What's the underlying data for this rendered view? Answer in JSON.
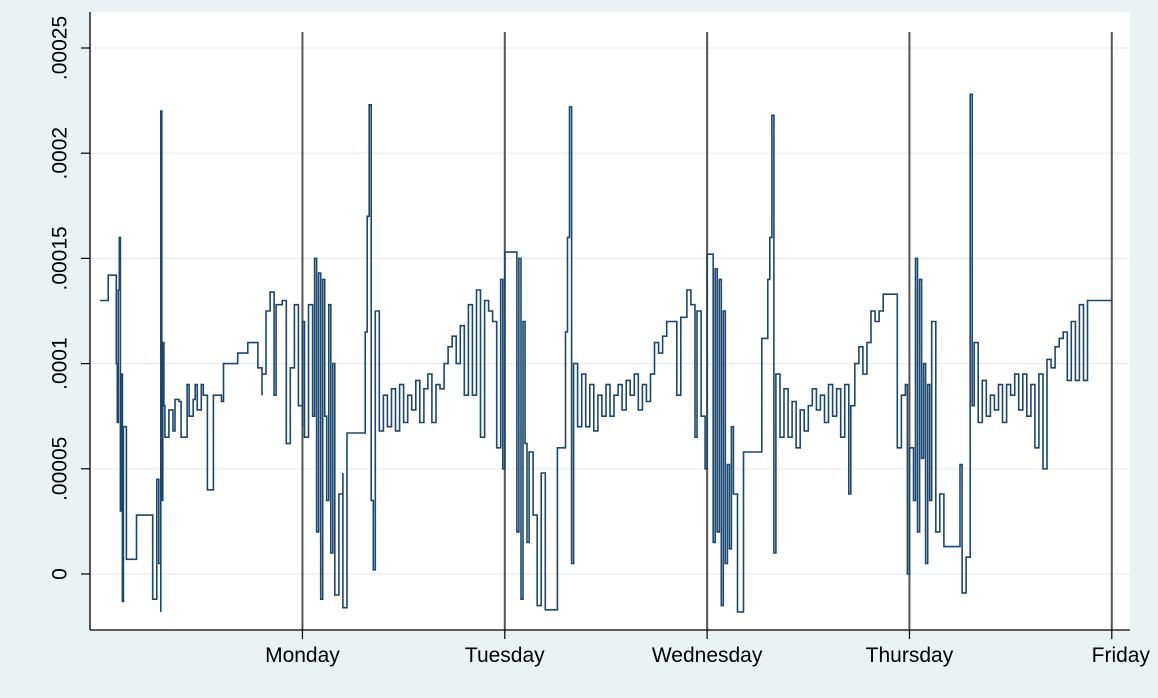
{
  "chart_data": {
    "type": "line",
    "title": "",
    "xlabel": "",
    "ylabel": "",
    "ylim": [
      -2.5e-05,
      0.00025
    ],
    "y_ticks": [
      {
        "value": 0,
        "label": "0"
      },
      {
        "value": 5e-05,
        "label": ".00005"
      },
      {
        "value": 0.0001,
        "label": ".0001"
      },
      {
        "value": 0.00015,
        "label": ".00015"
      },
      {
        "value": 0.0002,
        "label": ".0002"
      },
      {
        "value": 0.00025,
        "label": ".00025"
      }
    ],
    "x_ticks": [
      {
        "value": 1,
        "label": "Monday"
      },
      {
        "value": 2,
        "label": "Tuesday"
      },
      {
        "value": 3,
        "label": "Wednesday"
      },
      {
        "value": 4,
        "label": "Thursday"
      },
      {
        "value": 5,
        "label": "Friday"
      }
    ],
    "xlim": [
      -0.05,
      5.09
    ],
    "day_dividers": [
      1,
      2,
      3,
      4,
      5
    ],
    "grid": "horizontal",
    "colors": {
      "series": "#1a476f",
      "divider": "#555555",
      "grid": "#e8eef0",
      "plot_background": "#ffffff",
      "page_background": "#eaf2f3"
    },
    "series": [
      {
        "values": [
          [
            0.0,
            0.00013
          ],
          [
            0.03,
            0.00013
          ],
          [
            0.04,
            0.000142
          ],
          [
            0.08,
            0.000142
          ],
          [
            0.08,
            0.0001
          ],
          [
            0.085,
            7.2e-05
          ],
          [
            0.09,
            0.000135
          ],
          [
            0.095,
            0.00016
          ],
          [
            0.1,
            3e-05
          ],
          [
            0.105,
            9.5e-05
          ],
          [
            0.11,
            -1.3e-05
          ],
          [
            0.115,
            7e-05
          ],
          [
            0.13,
            7e-05
          ],
          [
            0.13,
            7e-06
          ],
          [
            0.18,
            7e-06
          ],
          [
            0.18,
            2.8e-05
          ],
          [
            0.26,
            2.8e-05
          ],
          [
            0.26,
            -1.2e-05
          ],
          [
            0.28,
            -1.2e-05
          ],
          [
            0.28,
            4.5e-05
          ],
          [
            0.29,
            5e-06
          ],
          [
            0.3,
            -1.8e-05
          ],
          [
            0.3,
            0.00022
          ],
          [
            0.305,
            3.5e-05
          ],
          [
            0.31,
            0.00011
          ],
          [
            0.315,
            8e-05
          ],
          [
            0.32,
            6.5e-05
          ],
          [
            0.34,
            6.5e-05
          ],
          [
            0.34,
            7.8e-05
          ],
          [
            0.36,
            6.8e-05
          ],
          [
            0.37,
            8.3e-05
          ],
          [
            0.39,
            8.2e-05
          ],
          [
            0.4,
            6.5e-05
          ],
          [
            0.42,
            6.5e-05
          ],
          [
            0.43,
            9e-05
          ],
          [
            0.44,
            7.5e-05
          ],
          [
            0.46,
            8.3e-05
          ],
          [
            0.47,
            9e-05
          ],
          [
            0.48,
            7.8e-05
          ],
          [
            0.5,
            9e-05
          ],
          [
            0.51,
            8.5e-05
          ],
          [
            0.53,
            8.5e-05
          ],
          [
            0.53,
            4e-05
          ],
          [
            0.56,
            4e-05
          ],
          [
            0.56,
            8.5e-05
          ],
          [
            0.6,
            8.2e-05
          ],
          [
            0.61,
            0.0001
          ],
          [
            0.67,
            0.0001
          ],
          [
            0.68,
            0.000105
          ],
          [
            0.72,
            0.000105
          ],
          [
            0.73,
            0.00011
          ],
          [
            0.77,
            0.00011
          ],
          [
            0.78,
            9.8e-05
          ],
          [
            0.8,
            8.5e-05
          ],
          [
            0.8,
            9.5e-05
          ],
          [
            0.82,
            0.000125
          ],
          [
            0.84,
            0.000134
          ],
          [
            0.86,
            8.5e-05
          ],
          [
            0.87,
            0.000128
          ],
          [
            0.9,
            0.00013
          ],
          [
            0.92,
            6.2e-05
          ],
          [
            0.94,
            9.8e-05
          ],
          [
            0.96,
            0.000128
          ],
          [
            0.98,
            8e-05
          ],
          [
            1.0,
            7e-05
          ],
          [
            1.0,
            0.00012
          ],
          [
            1.01,
            6.5e-05
          ],
          [
            1.03,
            0.000128
          ],
          [
            1.05,
            7.5e-05
          ],
          [
            1.06,
            0.00015
          ],
          [
            1.07,
            2e-05
          ],
          [
            1.08,
            0.000143
          ],
          [
            1.09,
            -1.2e-05
          ],
          [
            1.1,
            0.00014
          ],
          [
            1.11,
            7.5e-05
          ],
          [
            1.12,
            3.5e-05
          ],
          [
            1.13,
            0.000128
          ],
          [
            1.14,
            1e-05
          ],
          [
            1.15,
            0.0001
          ],
          [
            1.16,
            -1e-05
          ],
          [
            1.18,
            3.8e-05
          ],
          [
            1.2,
            4.8e-05
          ],
          [
            1.2,
            -1.6e-05
          ],
          [
            1.22,
            6.7e-05
          ],
          [
            1.3,
            6.7e-05
          ],
          [
            1.31,
            0.000115
          ],
          [
            1.32,
            0.00017
          ],
          [
            1.33,
            0.000223
          ],
          [
            1.34,
            3.5e-05
          ],
          [
            1.35,
            2e-06
          ],
          [
            1.36,
            0.000125
          ],
          [
            1.38,
            6.8e-05
          ],
          [
            1.4,
            8.5e-05
          ],
          [
            1.42,
            7e-05
          ],
          [
            1.44,
            8.8e-05
          ],
          [
            1.46,
            6.8e-05
          ],
          [
            1.48,
            9e-05
          ],
          [
            1.5,
            7.2e-05
          ],
          [
            1.52,
            8.5e-05
          ],
          [
            1.54,
            7.8e-05
          ],
          [
            1.56,
            9.2e-05
          ],
          [
            1.58,
            7.2e-05
          ],
          [
            1.6,
            8.8e-05
          ],
          [
            1.62,
            9.5e-05
          ],
          [
            1.64,
            7.2e-05
          ],
          [
            1.66,
            9e-05
          ],
          [
            1.68,
            8.8e-05
          ],
          [
            1.7,
            0.0001
          ],
          [
            1.72,
            0.000108
          ],
          [
            1.74,
            0.000113
          ],
          [
            1.76,
            0.0001
          ],
          [
            1.78,
            0.000118
          ],
          [
            1.8,
            8.5e-05
          ],
          [
            1.82,
            0.000128
          ],
          [
            1.84,
            8.5e-05
          ],
          [
            1.86,
            0.000135
          ],
          [
            1.88,
            6.5e-05
          ],
          [
            1.9,
            0.00013
          ],
          [
            1.92,
            0.000125
          ],
          [
            1.94,
            0.00012
          ],
          [
            1.96,
            6e-05
          ],
          [
            1.98,
            0.00014
          ],
          [
            1.99,
            5e-05
          ],
          [
            2.0,
            0.000153
          ],
          [
            2.05,
            0.000153
          ],
          [
            2.06,
            2e-05
          ],
          [
            2.07,
            0.00015
          ],
          [
            2.08,
            -1.2e-05
          ],
          [
            2.09,
            0.00012
          ],
          [
            2.1,
            6.2e-05
          ],
          [
            2.11,
            1.5e-05
          ],
          [
            2.12,
            5.8e-05
          ],
          [
            2.14,
            2.8e-05
          ],
          [
            2.16,
            -1.5e-05
          ],
          [
            2.18,
            4.8e-05
          ],
          [
            2.2,
            -1.7e-05
          ],
          [
            2.25,
            -1.7e-05
          ],
          [
            2.26,
            6e-05
          ],
          [
            2.29,
            6e-05
          ],
          [
            2.3,
            0.000115
          ],
          [
            2.31,
            0.00016
          ],
          [
            2.32,
            0.000222
          ],
          [
            2.33,
            5e-06
          ],
          [
            2.34,
            0.0001
          ],
          [
            2.36,
            7e-05
          ],
          [
            2.38,
            9.5e-05
          ],
          [
            2.4,
            7e-05
          ],
          [
            2.42,
            9e-05
          ],
          [
            2.44,
            6.8e-05
          ],
          [
            2.46,
            8.5e-05
          ],
          [
            2.48,
            7.5e-05
          ],
          [
            2.5,
            9e-05
          ],
          [
            2.52,
            7.5e-05
          ],
          [
            2.54,
            8.5e-05
          ],
          [
            2.56,
            9e-05
          ],
          [
            2.58,
            7.8e-05
          ],
          [
            2.6,
            9.2e-05
          ],
          [
            2.62,
            8.5e-05
          ],
          [
            2.64,
            9.5e-05
          ],
          [
            2.66,
            7.8e-05
          ],
          [
            2.68,
            9e-05
          ],
          [
            2.7,
            8.2e-05
          ],
          [
            2.72,
            9.5e-05
          ],
          [
            2.74,
            0.00011
          ],
          [
            2.76,
            0.000105
          ],
          [
            2.78,
            0.000113
          ],
          [
            2.8,
            0.00012
          ],
          [
            2.84,
            0.00012
          ],
          [
            2.85,
            8.5e-05
          ],
          [
            2.87,
            0.000122
          ],
          [
            2.9,
            0.000135
          ],
          [
            2.92,
            0.000128
          ],
          [
            2.94,
            6.5e-05
          ],
          [
            2.95,
            0.000125
          ],
          [
            2.97,
            7.5e-05
          ],
          [
            2.99,
            5e-05
          ],
          [
            3.0,
            0.000152
          ],
          [
            3.02,
            0.000152
          ],
          [
            3.03,
            1.5e-05
          ],
          [
            3.04,
            0.000145
          ],
          [
            3.05,
            2e-05
          ],
          [
            3.06,
            0.00014
          ],
          [
            3.07,
            -1.5e-05
          ],
          [
            3.08,
            0.000125
          ],
          [
            3.09,
            5e-06
          ],
          [
            3.1,
            5.2e-05
          ],
          [
            3.11,
            1.2e-05
          ],
          [
            3.12,
            7e-05
          ],
          [
            3.13,
            3.8e-05
          ],
          [
            3.15,
            -1.8e-05
          ],
          [
            3.17,
            -1.8e-05
          ],
          [
            3.18,
            5.8e-05
          ],
          [
            3.26,
            5.8e-05
          ],
          [
            3.27,
            0.000112
          ],
          [
            3.29,
            0.000112
          ],
          [
            3.3,
            0.00014
          ],
          [
            3.31,
            0.00016
          ],
          [
            3.32,
            0.000218
          ],
          [
            3.33,
            1e-05
          ],
          [
            3.34,
            9.5e-05
          ],
          [
            3.36,
            6.5e-05
          ],
          [
            3.38,
            8.8e-05
          ],
          [
            3.4,
            6.5e-05
          ],
          [
            3.42,
            8.2e-05
          ],
          [
            3.44,
            6e-05
          ],
          [
            3.46,
            7.8e-05
          ],
          [
            3.48,
            6.8e-05
          ],
          [
            3.5,
            8e-05
          ],
          [
            3.52,
            8.8e-05
          ],
          [
            3.54,
            7.8e-05
          ],
          [
            3.56,
            8.5e-05
          ],
          [
            3.58,
            7.2e-05
          ],
          [
            3.6,
            9e-05
          ],
          [
            3.62,
            7.5e-05
          ],
          [
            3.64,
            8.8e-05
          ],
          [
            3.66,
            6.5e-05
          ],
          [
            3.68,
            9e-05
          ],
          [
            3.7,
            3.8e-05
          ],
          [
            3.71,
            8e-05
          ],
          [
            3.73,
            0.0001
          ],
          [
            3.75,
            0.000108
          ],
          [
            3.77,
            9.5e-05
          ],
          [
            3.79,
            0.00011
          ],
          [
            3.81,
            0.000125
          ],
          [
            3.83,
            0.00012
          ],
          [
            3.85,
            0.000125
          ],
          [
            3.87,
            0.000133
          ],
          [
            3.93,
            0.000133
          ],
          [
            3.94,
            6e-05
          ],
          [
            3.96,
            8.5e-05
          ],
          [
            3.98,
            9e-05
          ],
          [
            3.99,
            0.0
          ],
          [
            4.0,
            6e-05
          ],
          [
            4.02,
            3.5e-05
          ],
          [
            4.03,
            0.00015
          ],
          [
            4.04,
            2e-05
          ],
          [
            4.05,
            0.00014
          ],
          [
            4.06,
            5.5e-05
          ],
          [
            4.07,
            0.0001
          ],
          [
            4.08,
            5e-06
          ],
          [
            4.09,
            9e-05
          ],
          [
            4.1,
            3.5e-05
          ],
          [
            4.11,
            0.00012
          ],
          [
            4.13,
            2e-05
          ],
          [
            4.15,
            3.8e-05
          ],
          [
            4.17,
            1.3e-05
          ],
          [
            4.24,
            1.3e-05
          ],
          [
            4.25,
            5.2e-05
          ],
          [
            4.26,
            -9e-06
          ],
          [
            4.28,
            8e-06
          ],
          [
            4.3,
            0.000228
          ],
          [
            4.31,
            8e-05
          ],
          [
            4.32,
            0.00011
          ],
          [
            4.34,
            7.2e-05
          ],
          [
            4.36,
            9.2e-05
          ],
          [
            4.38,
            7.5e-05
          ],
          [
            4.4,
            8.5e-05
          ],
          [
            4.42,
            7.8e-05
          ],
          [
            4.44,
            9e-05
          ],
          [
            4.46,
            7.2e-05
          ],
          [
            4.48,
            9e-05
          ],
          [
            4.5,
            8.5e-05
          ],
          [
            4.52,
            9.5e-05
          ],
          [
            4.54,
            7.8e-05
          ],
          [
            4.56,
            9.5e-05
          ],
          [
            4.58,
            7.5e-05
          ],
          [
            4.6,
            9e-05
          ],
          [
            4.62,
            6e-05
          ],
          [
            4.64,
            9.5e-05
          ],
          [
            4.66,
            5e-05
          ],
          [
            4.68,
            0.000102
          ],
          [
            4.7,
            9.8e-05
          ],
          [
            4.72,
            0.000108
          ],
          [
            4.74,
            0.000112
          ],
          [
            4.76,
            0.000115
          ],
          [
            4.78,
            9.2e-05
          ],
          [
            4.8,
            0.00012
          ],
          [
            4.82,
            9.2e-05
          ],
          [
            4.84,
            0.000128
          ],
          [
            4.86,
            9.2e-05
          ],
          [
            4.88,
            0.00013
          ],
          [
            4.94,
            0.00013
          ],
          [
            5.0,
            0.00013
          ]
        ]
      }
    ]
  }
}
